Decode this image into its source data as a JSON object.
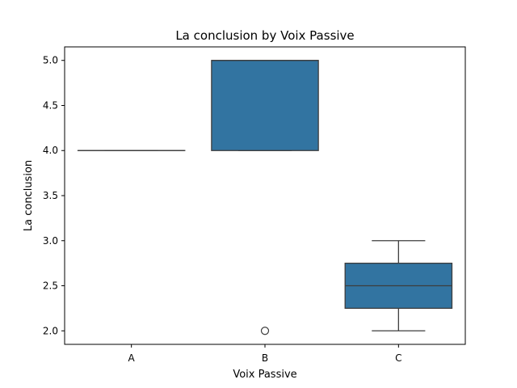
{
  "chart_data": {
    "type": "box",
    "title": "La conclusion by Voix Passive",
    "xlabel": "Voix Passive",
    "ylabel": "La conclusion",
    "categories": [
      "A",
      "B",
      "C"
    ],
    "ylim": [
      1.85,
      5.15
    ],
    "yticks": [
      "2.0",
      "2.5",
      "3.0",
      "3.5",
      "4.0",
      "4.5",
      "5.0"
    ],
    "box_color": "#3274a1",
    "line_color": "#3d3d3d",
    "series": [
      {
        "category": "A",
        "whisker_low": 4.0,
        "q1": 4.0,
        "median": 4.0,
        "q3": 4.0,
        "whisker_high": 4.0,
        "outliers": []
      },
      {
        "category": "B",
        "whisker_low": 4.0,
        "q1": 4.0,
        "median": 5.0,
        "q3": 5.0,
        "whisker_high": 5.0,
        "outliers": [
          2.0
        ]
      },
      {
        "category": "C",
        "whisker_low": 2.0,
        "q1": 2.25,
        "median": 2.5,
        "q3": 2.75,
        "whisker_high": 3.0,
        "outliers": []
      }
    ]
  }
}
